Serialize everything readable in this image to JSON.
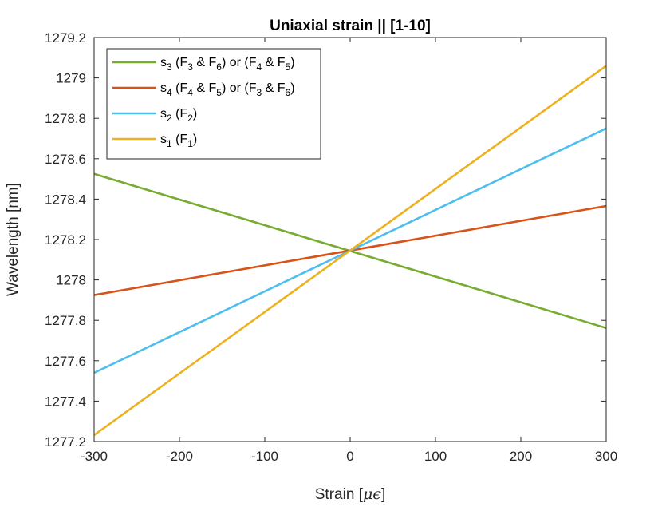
{
  "chart_data": {
    "type": "line",
    "title": "Uniaxial strain || [1-10]",
    "xlabel": "Strain [",
    "xlabel_unit": "μϵ",
    "xlabel_close": "]",
    "ylabel": "Wavelength [nm]",
    "xlim": [
      -300,
      300
    ],
    "ylim": [
      1277.2,
      1279.2
    ],
    "xticks": [
      -300,
      -200,
      -100,
      0,
      100,
      200,
      300
    ],
    "yticks": [
      1277.2,
      1277.4,
      1277.6,
      1277.8,
      1278,
      1278.2,
      1278.4,
      1278.6,
      1278.8,
      1279,
      1279.2
    ],
    "xtick_labels": [
      "-300",
      "-200",
      "-100",
      "0",
      "100",
      "200",
      "300"
    ],
    "ytick_labels": [
      "1277.2",
      "1277.4",
      "1277.6",
      "1277.8",
      "1278",
      "1278.2",
      "1278.4",
      "1278.6",
      "1278.8",
      "1279",
      "1279.2"
    ],
    "grid": false,
    "legend_position": "top-left",
    "series": [
      {
        "color": "#77AC30",
        "legend": [
          {
            "t": "s"
          },
          {
            "t": "3",
            "sub": true
          },
          {
            "t": " (F"
          },
          {
            "t": "3",
            "sub": true
          },
          {
            "t": " & F"
          },
          {
            "t": "6",
            "sub": true
          },
          {
            "t": ") or (F"
          },
          {
            "t": "4",
            "sub": true
          },
          {
            "t": " & F"
          },
          {
            "t": "5",
            "sub": true
          },
          {
            "t": ")"
          }
        ],
        "x": [
          -300,
          300
        ],
        "y": [
          1278.525,
          1277.762
        ]
      },
      {
        "color": "#D95319",
        "legend": [
          {
            "t": "s"
          },
          {
            "t": "4",
            "sub": true
          },
          {
            "t": " (F"
          },
          {
            "t": "4",
            "sub": true
          },
          {
            "t": " & F"
          },
          {
            "t": "5",
            "sub": true
          },
          {
            "t": ") or (F"
          },
          {
            "t": "3",
            "sub": true
          },
          {
            "t": " & F"
          },
          {
            "t": "6",
            "sub": true
          },
          {
            "t": ")"
          }
        ],
        "x": [
          -300,
          300
        ],
        "y": [
          1277.925,
          1278.366
        ]
      },
      {
        "color": "#4DBEEE",
        "legend": [
          {
            "t": "s"
          },
          {
            "t": "2",
            "sub": true
          },
          {
            "t": " (F"
          },
          {
            "t": "2",
            "sub": true
          },
          {
            "t": ")"
          }
        ],
        "x": [
          -300,
          300
        ],
        "y": [
          1277.54,
          1278.75
        ]
      },
      {
        "color": "#EDB120",
        "legend": [
          {
            "t": "s"
          },
          {
            "t": "1",
            "sub": true
          },
          {
            "t": " (F"
          },
          {
            "t": "1",
            "sub": true
          },
          {
            "t": ")"
          }
        ],
        "x": [
          -300,
          300
        ],
        "y": [
          1277.232,
          1279.06
        ]
      }
    ]
  }
}
